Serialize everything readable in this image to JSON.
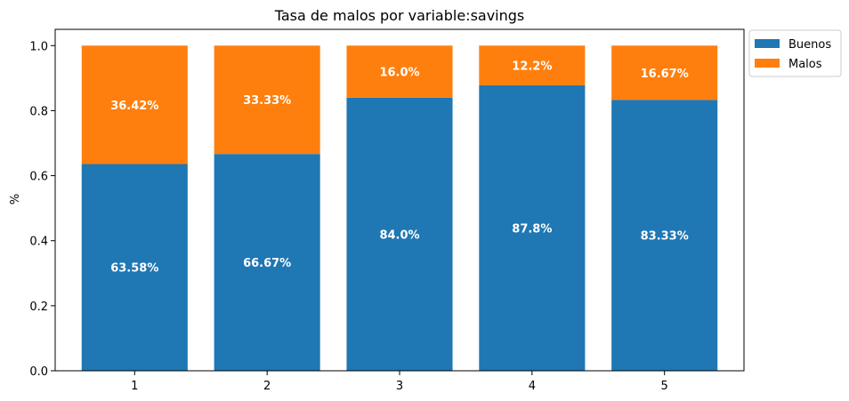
{
  "chart_data": {
    "type": "bar",
    "stacked": true,
    "title": "Tasa de malos por variable:savings",
    "xlabel": "",
    "ylabel": "%",
    "ylim": [
      0,
      1.05
    ],
    "yticks": [
      "0.0",
      "0.2",
      "0.4",
      "0.6",
      "0.8",
      "1.0"
    ],
    "categories": [
      "1",
      "2",
      "3",
      "4",
      "5"
    ],
    "series": [
      {
        "name": "Buenos",
        "color": "#1f77b4",
        "values": [
          0.6358,
          0.6667,
          0.84,
          0.878,
          0.8333
        ],
        "labels": [
          "63.58%",
          "66.67%",
          "84.0%",
          "87.8%",
          "83.33%"
        ]
      },
      {
        "name": "Malos",
        "color": "#ff7f0e",
        "values": [
          0.3642,
          0.3333,
          0.16,
          0.122,
          0.1667
        ],
        "labels": [
          "36.42%",
          "33.33%",
          "16.0%",
          "12.2%",
          "16.67%"
        ]
      }
    ],
    "legend": "upper-right-outside",
    "grid": false
  }
}
